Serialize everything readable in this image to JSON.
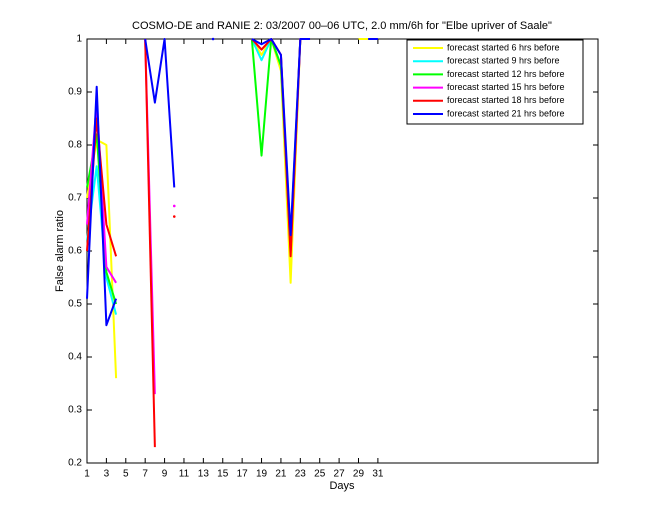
{
  "chart_data": {
    "type": "line",
    "title": "COSMO-DE and RANIE 2: 03/2007 00–06 UTC, 2.0 mm/6h for \"Elbe upriver of Saale\"",
    "xlabel": "Days",
    "ylabel": "False alarm ratio",
    "x": [
      1,
      2,
      3,
      4,
      5,
      6,
      7,
      8,
      9,
      10,
      11,
      12,
      13,
      14,
      15,
      16,
      17,
      18,
      19,
      20,
      21,
      22,
      23,
      24,
      25,
      26,
      27,
      28,
      29,
      30,
      31
    ],
    "xlim": [
      1,
      53.7
    ],
    "xticks": [
      1,
      3,
      5,
      7,
      9,
      11,
      13,
      15,
      17,
      19,
      21,
      23,
      25,
      27,
      29,
      31
    ],
    "ylim": [
      0.2,
      1
    ],
    "yticks": [
      0.2,
      0.3,
      0.4,
      0.5,
      0.6,
      0.7,
      0.8,
      0.9,
      1
    ],
    "grid": false,
    "legend": "upper right",
    "series": [
      {
        "name": "forecast started 6 hrs before",
        "color": "#ffff00",
        "values": [
          0.7,
          0.81,
          0.8,
          0.36,
          null,
          null,
          null,
          null,
          null,
          null,
          null,
          null,
          null,
          null,
          null,
          null,
          null,
          1,
          0.97,
          1,
          0.94,
          0.54,
          1,
          null,
          null,
          null,
          null,
          null,
          1,
          1,
          null
        ]
      },
      {
        "name": "forecast started 9 hrs before",
        "color": "#00ffff",
        "values": [
          0.62,
          0.76,
          0.55,
          0.48,
          null,
          null,
          null,
          null,
          null,
          null,
          null,
          null,
          null,
          null,
          null,
          null,
          null,
          1,
          0.96,
          1,
          0.95,
          0.6,
          1,
          null,
          null,
          null,
          null,
          null,
          null,
          null,
          null
        ]
      },
      {
        "name": "forecast started 12 hrs before",
        "color": "#00ff00",
        "values": [
          0.72,
          0.82,
          0.56,
          0.5,
          null,
          null,
          null,
          null,
          null,
          null,
          null,
          null,
          null,
          null,
          null,
          null,
          null,
          1,
          0.78,
          1,
          0.95,
          0.62,
          1,
          null,
          null,
          null,
          null,
          null,
          null,
          null,
          null
        ]
      },
      {
        "name": "forecast started 15 hrs before",
        "color": "#ff00ff",
        "values": [
          0.65,
          0.88,
          0.57,
          0.54,
          null,
          null,
          1,
          0.33,
          null,
          0.685,
          null,
          null,
          null,
          null,
          null,
          null,
          null,
          1,
          0.98,
          1,
          0.97,
          0.6,
          1,
          1,
          null,
          null,
          null,
          null,
          null,
          null,
          null
        ]
      },
      {
        "name": "forecast started 18 hrs before",
        "color": "#ff0000",
        "values": [
          0.6,
          0.85,
          0.65,
          0.59,
          null,
          null,
          1,
          0.23,
          null,
          0.665,
          null,
          null,
          null,
          null,
          null,
          null,
          null,
          1,
          0.98,
          1,
          0.97,
          0.59,
          1,
          1,
          null,
          null,
          null,
          null,
          null,
          null,
          null
        ]
      },
      {
        "name": "forecast started 21 hrs before",
        "color": "#0000ff",
        "values": [
          0.51,
          0.91,
          0.46,
          0.51,
          null,
          null,
          1,
          0.88,
          1,
          0.72,
          null,
          null,
          null,
          1,
          null,
          null,
          null,
          1,
          0.99,
          1,
          0.97,
          0.63,
          1,
          1,
          null,
          null,
          null,
          null,
          null,
          1,
          1
        ]
      }
    ]
  }
}
